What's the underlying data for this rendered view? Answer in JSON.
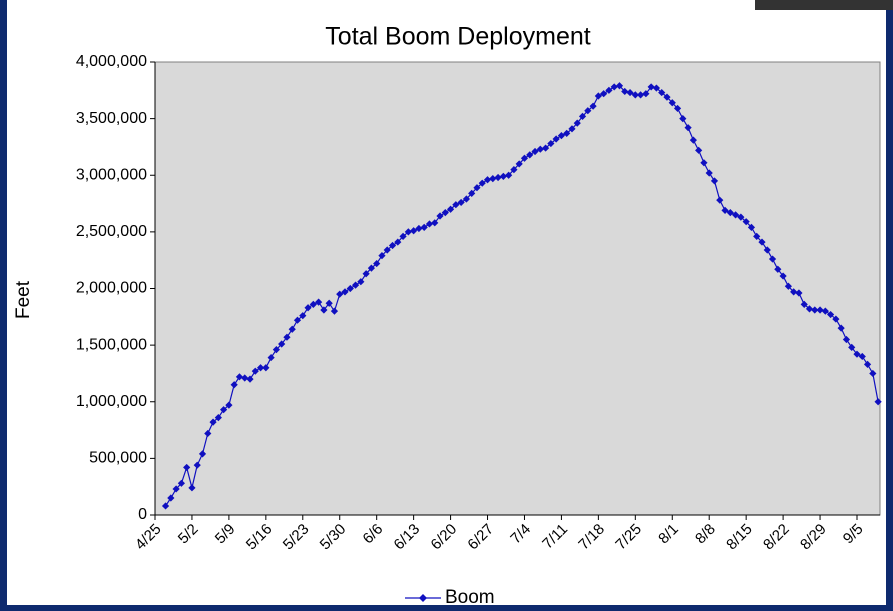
{
  "chart_data": {
    "type": "line",
    "title": "Total Boom Deployment",
    "y_label": "Feet",
    "categories": [
      "4/25",
      null,
      null,
      null,
      null,
      null,
      null,
      "5/2",
      null,
      null,
      null,
      null,
      null,
      null,
      "5/9",
      null,
      null,
      null,
      null,
      null,
      null,
      "5/16",
      null,
      null,
      null,
      null,
      null,
      null,
      "5/23",
      null,
      null,
      null,
      null,
      null,
      null,
      "5/30",
      null,
      null,
      null,
      null,
      null,
      null,
      "6/6",
      null,
      null,
      null,
      null,
      null,
      null,
      "6/13",
      null,
      null,
      null,
      null,
      null,
      null,
      "6/20",
      null,
      null,
      null,
      null,
      null,
      null,
      "6/27",
      null,
      null,
      null,
      null,
      null,
      null,
      "7/4",
      null,
      null,
      null,
      null,
      null,
      null,
      "7/11",
      null,
      null,
      null,
      null,
      null,
      null,
      "7/18",
      null,
      null,
      null,
      null,
      null,
      null,
      "7/25",
      null,
      null,
      null,
      null,
      null,
      null,
      "8/1",
      null,
      null,
      null,
      null,
      null,
      null,
      "8/8",
      null,
      null,
      null,
      null,
      null,
      null,
      "8/15",
      null,
      null,
      null,
      null,
      null,
      null,
      "8/22",
      null,
      null,
      null,
      null,
      null,
      null,
      "8/29",
      null,
      null,
      null,
      null,
      null,
      null,
      "9/5",
      null,
      null,
      null,
      null
    ],
    "series": [
      {
        "name": "Boom",
        "color": "#1010c0",
        "values": [
          null,
          null,
          80000,
          150000,
          230000,
          280000,
          420000,
          240000,
          440000,
          540000,
          720000,
          820000,
          860000,
          930000,
          970000,
          1150000,
          1220000,
          1210000,
          1200000,
          1270000,
          1300000,
          1300000,
          1390000,
          1460000,
          1510000,
          1570000,
          1640000,
          1720000,
          1760000,
          1830000,
          1860000,
          1880000,
          1810000,
          1870000,
          1800000,
          1950000,
          1970000,
          2000000,
          2030000,
          2060000,
          2130000,
          2180000,
          2220000,
          2290000,
          2340000,
          2380000,
          2410000,
          2460000,
          2500000,
          2510000,
          2530000,
          2540000,
          2570000,
          2580000,
          2640000,
          2670000,
          2700000,
          2740000,
          2760000,
          2790000,
          2840000,
          2890000,
          2930000,
          2960000,
          2970000,
          2980000,
          2990000,
          3000000,
          3050000,
          3100000,
          3150000,
          3180000,
          3210000,
          3230000,
          3240000,
          3280000,
          3320000,
          3350000,
          3370000,
          3410000,
          3460000,
          3520000,
          3570000,
          3610000,
          3700000,
          3720000,
          3750000,
          3780000,
          3790000,
          3740000,
          3730000,
          3710000,
          3710000,
          3720000,
          3780000,
          3770000,
          3730000,
          3690000,
          3640000,
          3590000,
          3500000,
          3420000,
          3310000,
          3220000,
          3110000,
          3020000,
          2950000,
          2780000,
          2690000,
          2670000,
          2650000,
          2630000,
          2590000,
          2540000,
          2460000,
          2410000,
          2340000,
          2260000,
          2170000,
          2110000,
          2020000,
          1970000,
          1960000,
          1860000,
          1820000,
          1810000,
          1810000,
          1800000,
          1770000,
          1730000,
          1650000,
          1550000,
          1480000,
          1420000,
          1400000,
          1330000,
          1250000,
          1000000
        ]
      }
    ],
    "ylim": [
      0,
      4000000
    ],
    "yticks": [
      0,
      {
        "value": 500000,
        "label": "500,000"
      },
      {
        "value": 1000000,
        "label": "1,000,000"
      },
      {
        "value": 1500000,
        "label": "1,500,000"
      },
      {
        "value": 2000000,
        "label": "2,000,000"
      },
      {
        "value": 2500000,
        "label": "2,500,000"
      },
      {
        "value": 3000000,
        "label": "3,000,000"
      },
      {
        "value": 3500000,
        "label": "3,500,000"
      },
      {
        "value": 4000000,
        "label": "4,000,000"
      }
    ],
    "grid": false,
    "legend": "bottom"
  }
}
